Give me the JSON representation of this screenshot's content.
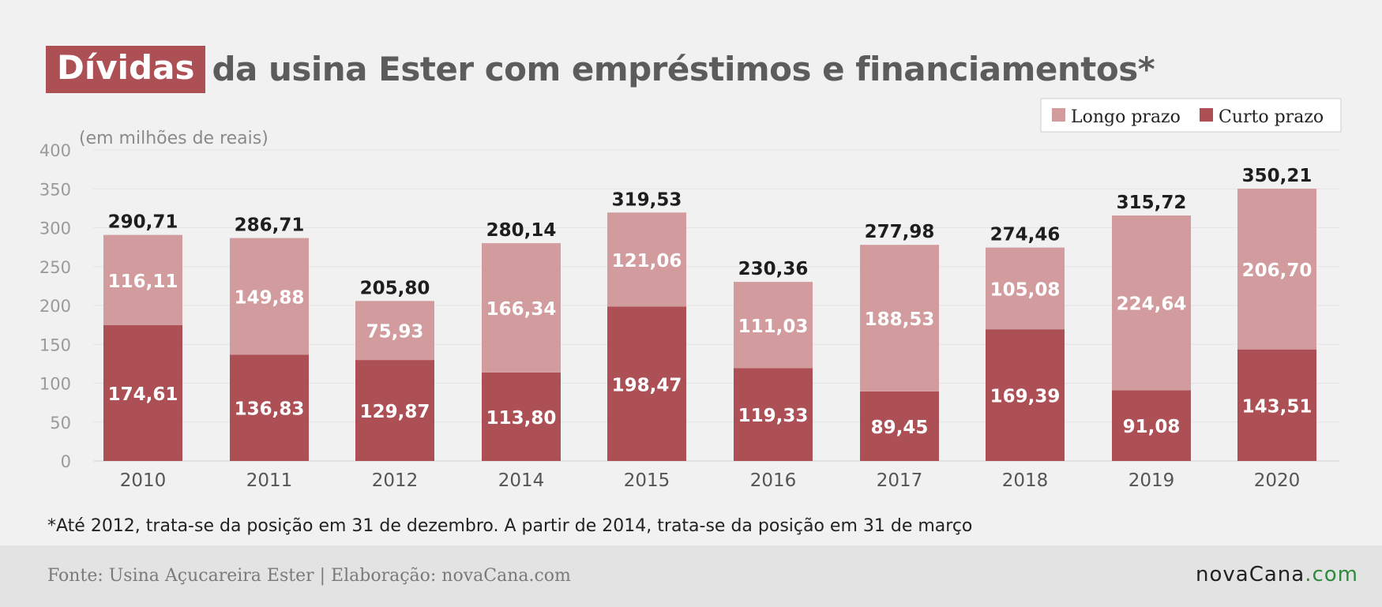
{
  "title": {
    "highlight": "Dívidas",
    "rest": "da usina Ester com empréstimos e financiamentos*"
  },
  "unit_label": "(em milhões de reais)",
  "footnote": "*Até 2012, trata-se da posição em 31 de dezembro. A partir de 2014, trata-se da posição em 31 de março",
  "footer": {
    "source": "Fonte: Usina Açucareira Ester | Elaboração: novaCana.com",
    "brand_main": "novaCana",
    "brand_tld": ".com"
  },
  "colors": {
    "longo": "#d29c9e",
    "curto": "#ad5056",
    "title_highlight": "#ad5056",
    "brand_tld": "#2e8b3e"
  },
  "chart_data": {
    "type": "bar",
    "stacked": true,
    "categories": [
      "2010",
      "2011",
      "2012",
      "2014",
      "2015",
      "2016",
      "2017",
      "2018",
      "2019",
      "2020"
    ],
    "series": [
      {
        "name": "Curto prazo",
        "values": [
          174.61,
          136.83,
          129.87,
          113.8,
          198.47,
          119.33,
          89.45,
          169.39,
          91.08,
          143.51
        ],
        "labels": [
          "174,61",
          "136,83",
          "129,87",
          "113,80",
          "198,47",
          "119,33",
          "89,45",
          "169,39",
          "91,08",
          "143,51"
        ]
      },
      {
        "name": "Longo prazo",
        "values": [
          116.11,
          149.88,
          75.93,
          166.34,
          121.06,
          111.03,
          188.53,
          105.08,
          224.64,
          206.7
        ],
        "labels": [
          "116,11",
          "149,88",
          "75,93",
          "166,34",
          "121,06",
          "111,03",
          "188,53",
          "105,08",
          "224,64",
          "206,70"
        ]
      }
    ],
    "totals": [
      290.71,
      286.71,
      205.8,
      280.14,
      319.53,
      230.36,
      277.98,
      274.46,
      315.72,
      350.21
    ],
    "total_labels": [
      "290,71",
      "286,71",
      "205,80",
      "280,14",
      "319,53",
      "230,36",
      "277,98",
      "274,46",
      "315,72",
      "350,21"
    ],
    "ylim": [
      0,
      400
    ],
    "yticks": [
      0,
      50,
      100,
      150,
      200,
      250,
      300,
      350,
      400
    ],
    "grid": true,
    "legend": {
      "placement": "top-right",
      "entries": [
        "Longo prazo",
        "Curto prazo"
      ]
    }
  }
}
